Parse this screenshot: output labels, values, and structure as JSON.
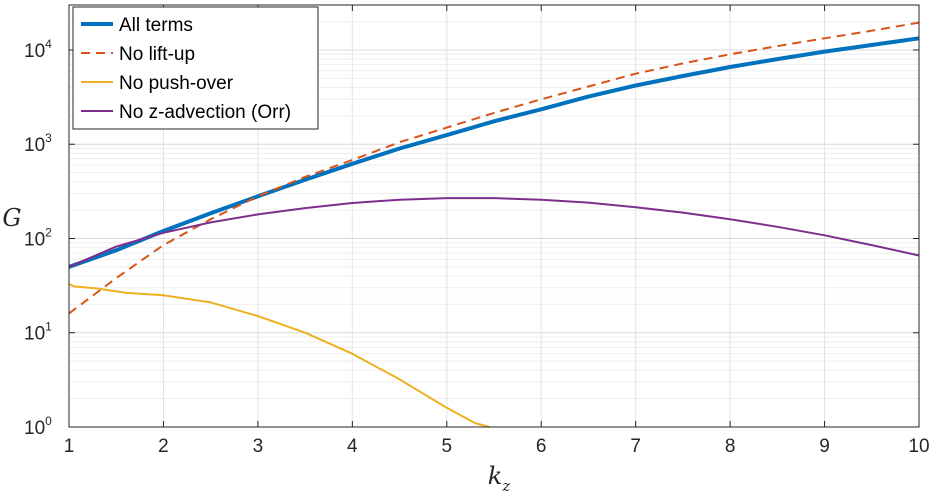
{
  "chart_data": {
    "type": "line",
    "xlabel": "k",
    "xlabel_sub": "z",
    "ylabel": "G",
    "xlim": [
      1,
      10
    ],
    "ylim": [
      1,
      30000
    ],
    "yscale": "log",
    "xticks": [
      "1",
      "2",
      "3",
      "4",
      "5",
      "6",
      "7",
      "8",
      "9",
      "10"
    ],
    "yticks": [
      {
        "value": 1,
        "base": "10",
        "exp": "0"
      },
      {
        "value": 10,
        "base": "10",
        "exp": "1"
      },
      {
        "value": 100,
        "base": "10",
        "exp": "2"
      },
      {
        "value": 1000,
        "base": "10",
        "exp": "3"
      },
      {
        "value": 10000,
        "base": "10",
        "exp": "4"
      }
    ],
    "grid": true,
    "legend_position": "top-left",
    "series": [
      {
        "name": "All terms",
        "color": "#0072BD",
        "style": "solid",
        "width": 4,
        "x": [
          1,
          1.5,
          2,
          2.5,
          3,
          3.5,
          4,
          4.5,
          5,
          5.5,
          6,
          6.5,
          7,
          7.5,
          8,
          8.5,
          9,
          9.5,
          10
        ],
        "y": [
          50,
          75,
          120,
          185,
          280,
          420,
          620,
          900,
          1250,
          1750,
          2350,
          3200,
          4200,
          5300,
          6600,
          8000,
          9600,
          11300,
          13300
        ]
      },
      {
        "name": "No lift-up",
        "color": "#D95319",
        "style": "dashed",
        "width": 2,
        "x": [
          1,
          1.5,
          2,
          2.5,
          3,
          3.5,
          4,
          4.5,
          5,
          5.5,
          6,
          6.5,
          7,
          7.5,
          8,
          8.5,
          9,
          9.5,
          10
        ],
        "y": [
          16,
          38,
          85,
          160,
          280,
          450,
          680,
          1050,
          1500,
          2150,
          3000,
          4100,
          5600,
          7200,
          9000,
          11000,
          13300,
          16000,
          19500
        ]
      },
      {
        "name": "No push-over",
        "color": "#EDB120",
        "style": "solid",
        "width": 2,
        "x": [
          1,
          1.05,
          1.3,
          1.6,
          2,
          2.5,
          3,
          3.5,
          4,
          4.5,
          5,
          5.3,
          5.45
        ],
        "y": [
          33,
          31,
          29.5,
          26.5,
          25,
          21,
          15,
          10,
          6,
          3.2,
          1.6,
          1.1,
          1.0
        ]
      },
      {
        "name": "No z-advection (Orr)",
        "color": "#7E2F8E",
        "style": "solid",
        "width": 2,
        "x": [
          1,
          1.5,
          2,
          2.5,
          3,
          3.5,
          4,
          4.5,
          5,
          5.5,
          6,
          6.5,
          7,
          7.5,
          8,
          8.5,
          9,
          9.5,
          10
        ],
        "y": [
          50,
          82,
          115,
          148,
          180,
          210,
          238,
          258,
          268,
          268,
          258,
          240,
          215,
          188,
          160,
          133,
          108,
          85,
          66
        ]
      }
    ]
  }
}
